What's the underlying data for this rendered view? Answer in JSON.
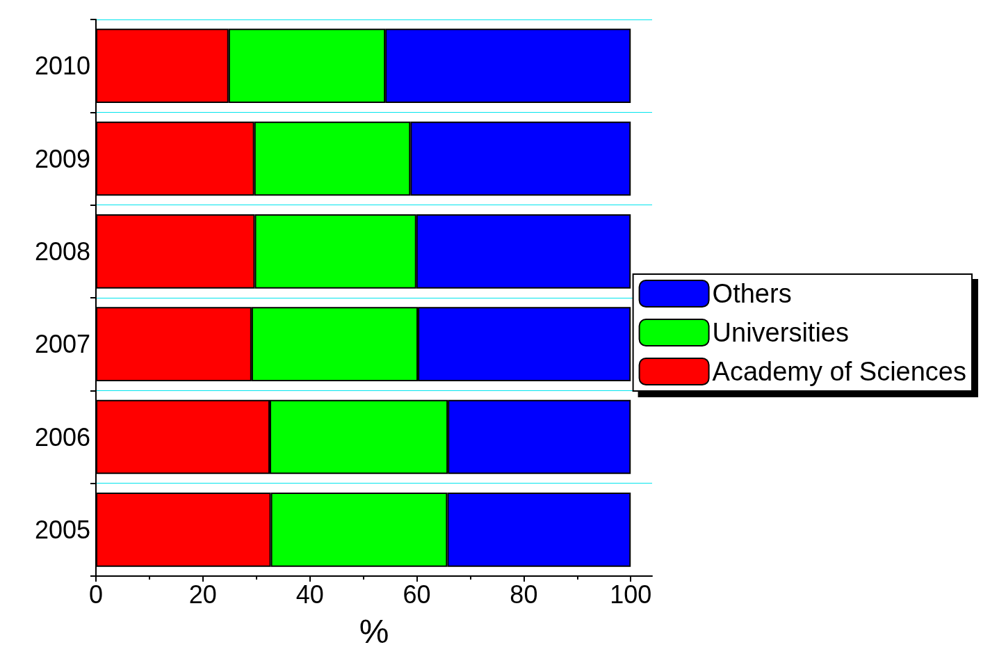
{
  "chart_data": {
    "type": "bar",
    "orientation": "horizontal",
    "stacked": true,
    "xlabel": "%",
    "categories": [
      "2010",
      "2009",
      "2008",
      "2007",
      "2006",
      "2005"
    ],
    "series": [
      {
        "name": "Academy of Sciences",
        "color": "#ff0000",
        "values": [
          24.8,
          29.6,
          29.7,
          29.1,
          32.5,
          32.7
        ]
      },
      {
        "name": "Universities",
        "color": "#00ff00",
        "values": [
          29.3,
          29.2,
          30.2,
          31.1,
          33.3,
          33.0
        ]
      },
      {
        "name": "Others",
        "color": "#0000ff",
        "values": [
          45.9,
          41.2,
          40.1,
          39.8,
          34.2,
          34.3
        ]
      }
    ],
    "xlim": [
      0,
      104
    ],
    "xticks": [
      0,
      20,
      40,
      60,
      80,
      100
    ],
    "grid": "y",
    "legend": "right"
  }
}
